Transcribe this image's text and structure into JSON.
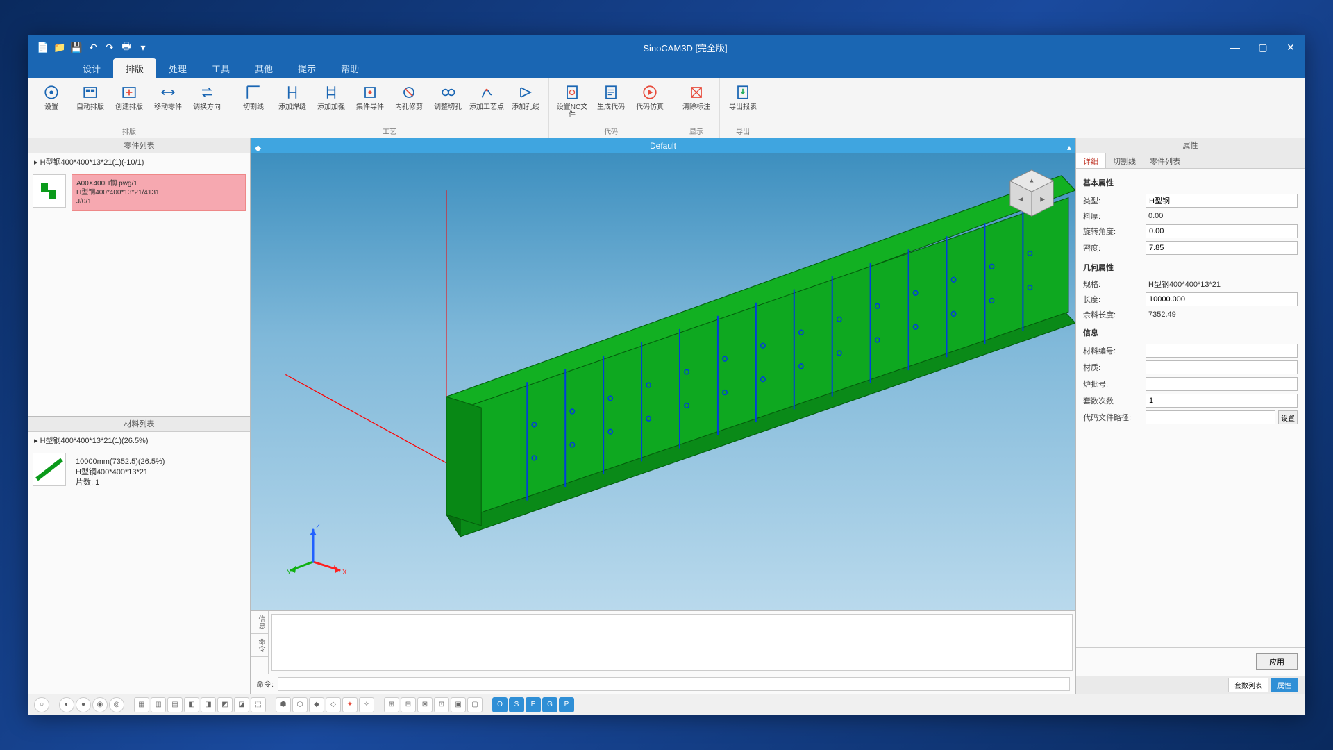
{
  "titlebar": {
    "title": "SinoCAM3D [完全版]"
  },
  "menu": {
    "tabs": [
      "设计",
      "排版",
      "处理",
      "工具",
      "其他",
      "提示",
      "帮助"
    ],
    "active_index": 1
  },
  "ribbon": {
    "groups": [
      {
        "label": "排版",
        "buttons": [
          "设置",
          "自动排版",
          "创建排版",
          "移动零件",
          "调换方向"
        ]
      },
      {
        "label": "工艺",
        "buttons": [
          "切割线",
          "添加焊缝",
          "添加加强",
          "集件导件",
          "内孔修剪",
          "调整切孔",
          "添加工艺点",
          "添加孔线"
        ]
      },
      {
        "label": "代码",
        "buttons": [
          "设置NC文件",
          "生成代码",
          "代码仿真"
        ]
      },
      {
        "label": "显示",
        "buttons": [
          "清除标注"
        ]
      },
      {
        "label": "导出",
        "buttons": [
          "导出报表"
        ]
      }
    ]
  },
  "left": {
    "parts_header": "零件列表",
    "parts_root": "H型钢400*400*13*21(1)(-10/1)",
    "part": {
      "line1": "A00X400H钢.pwg/1",
      "line2": "H型钢400*400*13*21/4131",
      "line3": "J/0/1"
    },
    "mats_header": "材料列表",
    "mats_root": "H型钢400*400*13*21(1)(26.5%)",
    "mat": {
      "line1": "10000mm(7352.5)(26.5%)",
      "line2": "H型钢400*400*13*21",
      "line3": "片数: 1"
    }
  },
  "viewport": {
    "title": "Default",
    "beam_color": "#0a9a1a",
    "beam_edge": "#045c0c",
    "marking_color": "#0040d8",
    "axis_color": "#ff0000",
    "bg_top": "#3d8fbf",
    "bg_bottom": "#b9d9ec",
    "cube_face": "#d8d8d8",
    "triad": {
      "x": "#ff2020",
      "y": "#10b010",
      "z": "#2060ff"
    }
  },
  "props": {
    "panel_header": "属性",
    "tabs": [
      "详细",
      "切割线",
      "零件列表"
    ],
    "active_tab": 0,
    "sections": {
      "basic": "基本属性",
      "geom": "几何属性",
      "info": "信息"
    },
    "basic": {
      "type_label": "类型:",
      "type_value": "H型钢",
      "thickness_label": "料厚:",
      "thickness_value": "0.00",
      "angle_label": "旋转角度:",
      "angle_value": "0.00",
      "density_label": "密度:",
      "density_value": "7.85"
    },
    "geom": {
      "spec_label": "规格:",
      "spec_value": "H型钢400*400*13*21",
      "length_label": "长度:",
      "length_value": "10000.000",
      "remain_label": "余料长度:",
      "remain_value": "7352.49"
    },
    "info": {
      "matno_label": "材料编号:",
      "material_label": "材质:",
      "heatno_label": "炉批号:",
      "copies_label": "套数次数",
      "copies_value": "1",
      "codepath_label": "代码文件路径:",
      "browse": "设置"
    },
    "apply": "应用",
    "bottom_tabs": [
      "套数列表",
      "属性"
    ],
    "bottom_active": 1
  },
  "output": {
    "tab1": "信息",
    "tab2": "命令",
    "cmd_label": "命令:"
  },
  "colors": {
    "title_bg": "#1a66b3",
    "ribbon_icon": "#1a66b3",
    "highlight_card": "#f6a8b0"
  }
}
